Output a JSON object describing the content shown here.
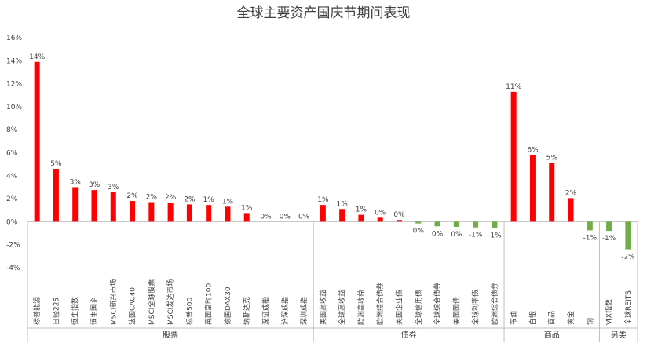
{
  "chart_data": {
    "type": "bar",
    "title": "全球主要资产国庆节期间表现",
    "ylim": [
      -4,
      16
    ],
    "yticks": [
      -4,
      -2,
      0,
      2,
      4,
      6,
      8,
      10,
      12,
      14,
      16
    ],
    "ytick_labels": [
      "-4%",
      "-2%",
      "0%",
      "2%",
      "4%",
      "6%",
      "8%",
      "10%",
      "12%",
      "14%",
      "16%"
    ],
    "colors": {
      "positive": "#ff0000",
      "negative": "#70ad47",
      "axis": "#bfbfbf",
      "text": "#404040"
    },
    "groups": [
      {
        "name": "股票",
        "categories": [
          "标普能源",
          "日经225",
          "恒生指数",
          "恒生国企",
          "MSCI新兴市场",
          "法国CAC40",
          "MSCI全球股票",
          "MSCI发达市场",
          "标普500",
          "英国富时100",
          "德国DAX30",
          "纳斯达克",
          "深证成指",
          "沪深成指",
          "深圳成指"
        ],
        "values": [
          13.9,
          4.6,
          3.0,
          2.75,
          2.55,
          1.8,
          1.7,
          1.65,
          1.5,
          1.45,
          1.3,
          0.75,
          0.0,
          0.0,
          0.0
        ],
        "labels": [
          "14%",
          "5%",
          "3%",
          "3%",
          "3%",
          "2%",
          "2%",
          "2%",
          "2%",
          "1%",
          "1%",
          "1%",
          "0%",
          "0%",
          "0%"
        ]
      },
      {
        "name": "债券",
        "categories": [
          "美国高收益",
          "全球高收益",
          "欧洲高收益",
          "欧洲综合债券",
          "美国企业债",
          "全球信用债",
          "全球综合债券",
          "美国国债",
          "全球利率债",
          "欧洲综合债券"
        ],
        "values": [
          1.45,
          1.1,
          0.6,
          0.35,
          0.15,
          -0.15,
          -0.4,
          -0.45,
          -0.5,
          -0.55
        ],
        "labels": [
          "1%",
          "1%",
          "1%",
          "0%",
          "0%",
          "0%",
          "0%",
          "0%",
          "-1%",
          "-1%"
        ]
      },
      {
        "name": "商品",
        "categories": [
          "布油",
          "白银",
          "商品",
          "黄金",
          "铜"
        ],
        "values": [
          11.3,
          5.8,
          5.1,
          2.05,
          -0.75
        ],
        "labels": [
          "11%",
          "6%",
          "5%",
          "2%",
          "-1%"
        ]
      },
      {
        "name": "另类",
        "categories": [
          "VIX指数",
          "全球REITS"
        ],
        "values": [
          -0.8,
          -2.4
        ],
        "labels": [
          "-1%",
          "-2%"
        ]
      }
    ]
  }
}
